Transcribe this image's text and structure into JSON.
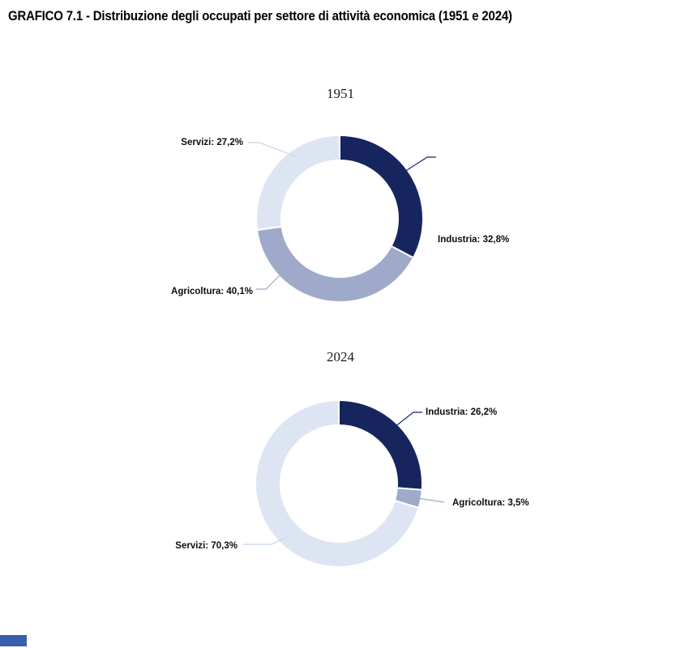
{
  "title": "GRAFICO 7.1 - Distribuzione degli occupati per settore di attività economica (1951 e 2024)",
  "footer_bar_color": "#3A5EAE",
  "chart_data": [
    {
      "type": "pie",
      "donut": true,
      "title": "1951",
      "start_angle": "12-o-clock",
      "direction": "clockwise",
      "labels": [
        "Industria",
        "Agricoltura",
        "Servizi"
      ],
      "values": [
        32.8,
        40.1,
        27.2
      ],
      "data_labels": [
        "Industria: 32,8%",
        "Agricoltura: 40,1%",
        "Servizi: 27,2%"
      ],
      "slice_colors": [
        "#16255E",
        "#9FAACB",
        "#DEE5F2"
      ],
      "leader_colors": [
        "#16255E",
        "#9FAACB",
        "#C6D3E9"
      ],
      "legend": "none"
    },
    {
      "type": "pie",
      "donut": true,
      "title": "2024",
      "start_angle": "12-o-clock",
      "direction": "clockwise",
      "labels": [
        "Industria",
        "Agricoltura",
        "Servizi"
      ],
      "values": [
        26.2,
        3.5,
        70.3
      ],
      "data_labels": [
        "Industria: 26,2%",
        "Agricoltura: 3,5%",
        "Servizi: 70,3%"
      ],
      "slice_colors": [
        "#16255E",
        "#9FAACB",
        "#DEE5F2"
      ],
      "leader_colors": [
        "#16255E",
        "#9FAACB",
        "#C6D3E9"
      ],
      "legend": "none"
    }
  ]
}
